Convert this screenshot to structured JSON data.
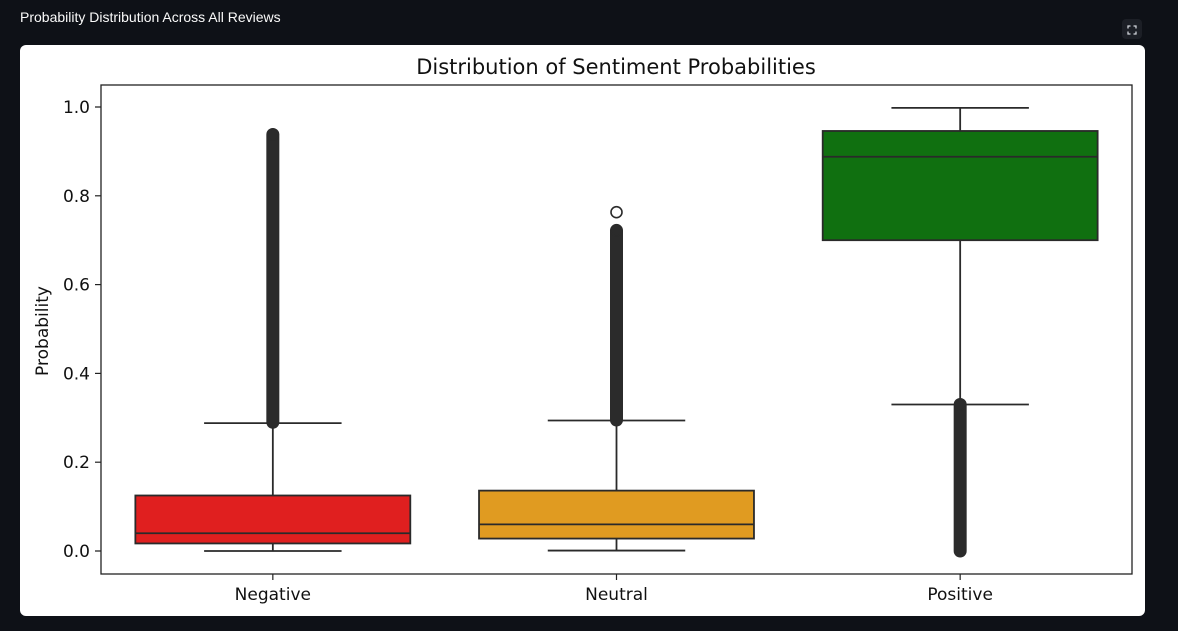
{
  "page": {
    "header_title": "Probability Distribution Across All Reviews",
    "fullscreen_icon": "fullscreen-icon"
  },
  "colors": {
    "page_background": "#0e1117",
    "card_background": "#ffffff",
    "negative": "#e01f1f",
    "neutral": "#e09b21",
    "positive": "#107010",
    "lines": "#2a2a2a"
  },
  "chart_data": {
    "type": "box",
    "title": "Distribution of Sentiment Probabilities",
    "xlabel": "",
    "ylabel": "Probability",
    "ylim": [
      -0.05,
      1.05
    ],
    "yticks": [
      0.0,
      0.2,
      0.4,
      0.6,
      0.8,
      1.0
    ],
    "ytick_labels": [
      "0.0",
      "0.2",
      "0.4",
      "0.6",
      "0.8",
      "1.0"
    ],
    "grid": false,
    "categories": [
      "Negative",
      "Neutral",
      "Positive"
    ],
    "boxes": [
      {
        "category": "Negative",
        "color": "#e01f1f",
        "whisker_low": 0.0,
        "q1": 0.017,
        "median": 0.04,
        "q3": 0.125,
        "whisker_high": 0.288,
        "outliers_range": [
          0.29,
          0.938
        ]
      },
      {
        "category": "Neutral",
        "color": "#e09b21",
        "whisker_low": 0.001,
        "q1": 0.028,
        "median": 0.06,
        "q3": 0.136,
        "whisker_high": 0.294,
        "outliers_range": [
          0.295,
          0.722
        ],
        "outliers_isolated": [
          0.763
        ]
      },
      {
        "category": "Positive",
        "color": "#107010",
        "whisker_low": 0.33,
        "q1": 0.7,
        "median": 0.888,
        "q3": 0.946,
        "whisker_high": 0.998,
        "outliers_range": [
          0.0,
          0.33
        ]
      }
    ]
  }
}
